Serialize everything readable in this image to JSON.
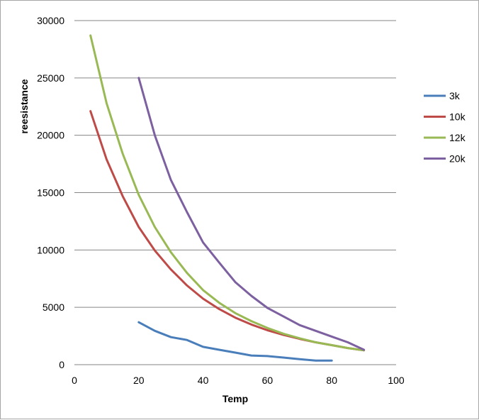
{
  "chart_data": {
    "type": "line",
    "title": "",
    "xlabel": "Temp",
    "ylabel": "reesistance",
    "xlim": [
      0,
      100
    ],
    "ylim": [
      0,
      30000
    ],
    "xticks": [
      0,
      20,
      40,
      60,
      80,
      100
    ],
    "yticks": [
      0,
      5000,
      10000,
      15000,
      20000,
      25000,
      30000
    ],
    "grid": "horizontal",
    "legend_position": "right",
    "series": [
      {
        "name": "3k",
        "color": "#4a7ebb",
        "x": [
          20,
          25,
          30,
          35,
          40,
          45,
          50,
          55,
          60,
          65,
          70,
          75,
          80
        ],
        "y": [
          3700,
          2950,
          2400,
          2150,
          1550,
          1300,
          1050,
          800,
          750,
          620,
          480,
          350,
          350
        ]
      },
      {
        "name": "10k",
        "color": "#be4b48",
        "x": [
          5,
          10,
          15,
          20,
          25,
          30,
          35,
          40,
          45,
          50,
          55,
          60,
          65,
          70,
          75,
          80,
          85,
          90
        ],
        "y": [
          22100,
          17900,
          14700,
          12000,
          9950,
          8300,
          6900,
          5750,
          4850,
          4100,
          3500,
          3000,
          2600,
          2250,
          1950,
          1700,
          1450,
          1250
        ]
      },
      {
        "name": "12k",
        "color": "#98b954",
        "x": [
          5,
          10,
          15,
          20,
          25,
          30,
          35,
          40,
          45,
          50,
          55,
          60,
          65,
          70,
          75,
          80,
          85,
          90
        ],
        "y": [
          28700,
          22800,
          18400,
          14800,
          12000,
          9800,
          8000,
          6500,
          5400,
          4500,
          3800,
          3200,
          2700,
          2300,
          1950,
          1700,
          1450,
          1250
        ]
      },
      {
        "name": "20k",
        "color": "#7d60a0",
        "x": [
          20,
          25,
          30,
          35,
          40,
          45,
          50,
          55,
          60,
          65,
          70,
          75,
          80,
          85,
          90
        ],
        "y": [
          25000,
          20000,
          16100,
          13300,
          10650,
          8900,
          7200,
          6000,
          4950,
          4200,
          3450,
          2950,
          2450,
          1950,
          1300
        ]
      }
    ]
  }
}
